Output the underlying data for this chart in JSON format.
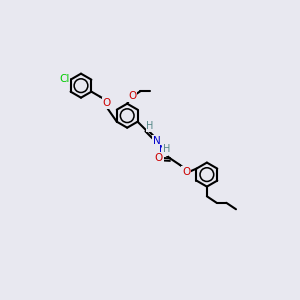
{
  "bg_color": "#e8e8f0",
  "atom_colors": {
    "Cl": "#00cc00",
    "O": "#cc0000",
    "N": "#0000cc",
    "C": "#000000",
    "H": "#558888"
  },
  "bond_color": "#000000",
  "bond_width": 1.5,
  "figsize": [
    3.0,
    3.0
  ],
  "dpi": 100
}
